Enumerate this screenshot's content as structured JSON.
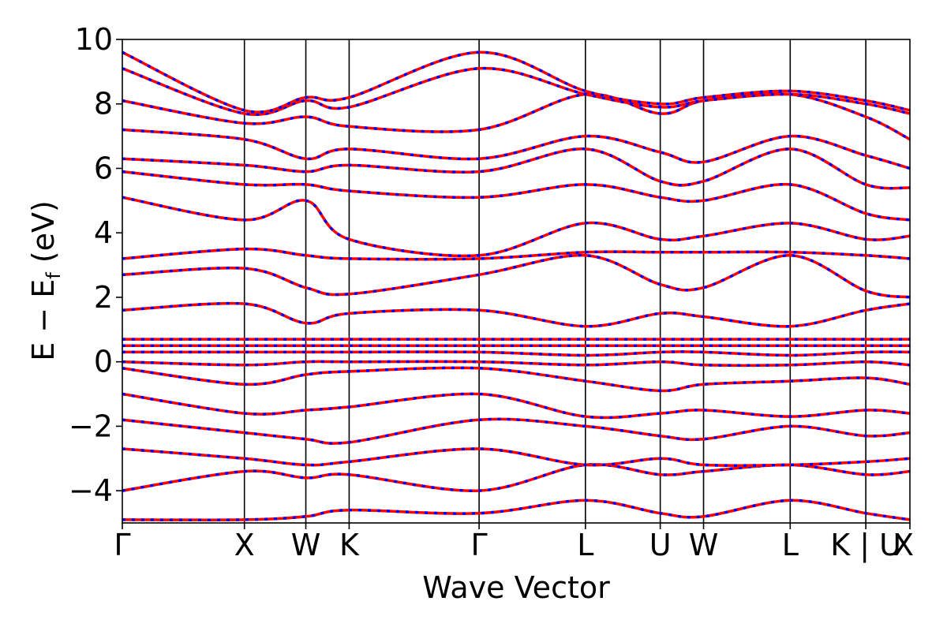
{
  "chart_data": {
    "type": "line",
    "xlabel": "Wave Vector",
    "ylabel_main": "E − E",
    "ylabel_sub": "f",
    "ylabel_unit": " (eV)",
    "ylim": [
      -5,
      10
    ],
    "yticks": [
      -4,
      -2,
      0,
      2,
      4,
      6,
      8,
      10
    ],
    "ytick_labels": [
      "−4",
      "−2",
      "0",
      "2",
      "4",
      "6",
      "8",
      "10"
    ],
    "x_range": [
      0,
      1
    ],
    "kpoints": [
      {
        "label": "Γ",
        "x": 0.0
      },
      {
        "label": "X",
        "x": 0.155
      },
      {
        "label": "W",
        "x": 0.233
      },
      {
        "label": "K",
        "x": 0.288
      },
      {
        "label": "Γ",
        "x": 0.453
      },
      {
        "label": "L",
        "x": 0.588
      },
      {
        "label": "U",
        "x": 0.683
      },
      {
        "label": "W",
        "x": 0.738
      },
      {
        "label": "L",
        "x": 0.848
      },
      {
        "label": "K | U",
        "x": 0.944
      },
      {
        "label": "X",
        "x": 1.0
      }
    ],
    "grid": false,
    "series_colors": {
      "solid": "#ff0000",
      "dashed": "#0000ff"
    },
    "bands": [
      {
        "name": "",
        "x": [
          0,
          0.155,
          0.233,
          0.288,
          0.453,
          0.588,
          0.683,
          0.738,
          0.848,
          0.944,
          1.0
        ],
        "y": [
          -4.9,
          -4.9,
          -4.8,
          -4.6,
          -4.7,
          -4.3,
          -4.7,
          -4.8,
          -4.3,
          -4.7,
          -4.9
        ]
      },
      {
        "name": "",
        "x": [
          0,
          0.155,
          0.233,
          0.288,
          0.453,
          0.588,
          0.683,
          0.738,
          0.848,
          0.944,
          1.0
        ],
        "y": [
          -4.0,
          -3.4,
          -3.6,
          -3.5,
          -4.0,
          -3.2,
          -3.5,
          -3.4,
          -3.2,
          -3.5,
          -3.4
        ]
      },
      {
        "name": "",
        "x": [
          0,
          0.155,
          0.233,
          0.288,
          0.453,
          0.588,
          0.683,
          0.738,
          0.848,
          0.944,
          1.0
        ],
        "y": [
          -2.7,
          -3.0,
          -3.2,
          -3.1,
          -2.7,
          -3.2,
          -3.0,
          -3.2,
          -3.2,
          -3.1,
          -3.0
        ]
      },
      {
        "name": "",
        "x": [
          0,
          0.155,
          0.233,
          0.288,
          0.453,
          0.588,
          0.683,
          0.738,
          0.848,
          0.944,
          1.0
        ],
        "y": [
          -1.8,
          -2.2,
          -2.4,
          -2.5,
          -1.8,
          -2.0,
          -2.3,
          -2.4,
          -2.0,
          -2.3,
          -2.2
        ]
      },
      {
        "name": "",
        "x": [
          0,
          0.155,
          0.233,
          0.288,
          0.453,
          0.588,
          0.683,
          0.738,
          0.848,
          0.944,
          1.0
        ],
        "y": [
          -1.0,
          -1.6,
          -1.5,
          -1.4,
          -1.0,
          -1.7,
          -1.6,
          -1.5,
          -1.7,
          -1.5,
          -1.6
        ]
      },
      {
        "name": "",
        "x": [
          0,
          0.155,
          0.233,
          0.288,
          0.453,
          0.588,
          0.683,
          0.738,
          0.848,
          0.944,
          1.0
        ],
        "y": [
          -0.2,
          -0.7,
          -0.4,
          -0.3,
          -0.2,
          -0.6,
          -0.9,
          -0.7,
          -0.6,
          -0.5,
          -0.7
        ]
      },
      {
        "name": "",
        "x": [
          0,
          0.155,
          0.233,
          0.288,
          0.453,
          0.588,
          0.683,
          0.738,
          0.848,
          0.944,
          1.0
        ],
        "y": [
          0.0,
          -0.1,
          0.0,
          0.0,
          0.0,
          -0.1,
          0.0,
          -0.1,
          -0.1,
          0.0,
          -0.1
        ]
      },
      {
        "name": "",
        "x": [
          0,
          0.155,
          0.233,
          0.288,
          0.453,
          0.588,
          0.683,
          0.738,
          0.848,
          0.944,
          1.0
        ],
        "y": [
          0.3,
          0.3,
          0.3,
          0.3,
          0.3,
          0.2,
          0.3,
          0.3,
          0.2,
          0.3,
          0.3
        ]
      },
      {
        "name": "",
        "x": [
          0,
          0.155,
          0.233,
          0.288,
          0.453,
          0.588,
          0.683,
          0.738,
          0.848,
          0.944,
          1.0
        ],
        "y": [
          0.5,
          0.5,
          0.5,
          0.5,
          0.5,
          0.5,
          0.5,
          0.5,
          0.5,
          0.5,
          0.5
        ]
      },
      {
        "name": "",
        "x": [
          0,
          0.155,
          0.233,
          0.288,
          0.453,
          0.588,
          0.683,
          0.738,
          0.848,
          0.944,
          1.0
        ],
        "y": [
          0.7,
          0.7,
          0.7,
          0.7,
          0.7,
          0.7,
          0.7,
          0.7,
          0.7,
          0.7,
          0.7
        ]
      },
      {
        "name": "",
        "x": [
          0,
          0.155,
          0.233,
          0.288,
          0.453,
          0.588,
          0.683,
          0.738,
          0.848,
          0.944,
          1.0
        ],
        "y": [
          1.6,
          1.8,
          1.2,
          1.5,
          1.6,
          1.1,
          1.5,
          1.4,
          1.1,
          1.6,
          1.8
        ]
      },
      {
        "name": "",
        "x": [
          0,
          0.155,
          0.233,
          0.288,
          0.453,
          0.588,
          0.683,
          0.738,
          0.848,
          0.944,
          1.0
        ],
        "y": [
          2.7,
          2.9,
          2.3,
          2.1,
          2.7,
          3.3,
          2.4,
          2.3,
          3.3,
          2.2,
          2.0
        ]
      },
      {
        "name": "",
        "x": [
          0,
          0.155,
          0.233,
          0.288,
          0.453,
          0.588,
          0.683,
          0.738,
          0.848,
          0.944,
          1.0
        ],
        "y": [
          3.2,
          3.5,
          3.3,
          3.2,
          3.2,
          3.4,
          3.4,
          3.4,
          3.4,
          3.3,
          3.2
        ]
      },
      {
        "name": "",
        "x": [
          0,
          0.155,
          0.233,
          0.288,
          0.453,
          0.588,
          0.683,
          0.738,
          0.848,
          0.944,
          1.0
        ],
        "y": [
          5.1,
          4.4,
          5.0,
          3.8,
          3.3,
          4.3,
          3.8,
          3.9,
          4.3,
          3.8,
          3.9
        ]
      },
      {
        "name": "",
        "x": [
          0,
          0.155,
          0.233,
          0.288,
          0.453,
          0.588,
          0.683,
          0.738,
          0.848,
          0.944,
          1.0
        ],
        "y": [
          5.9,
          5.5,
          5.5,
          5.3,
          5.1,
          5.5,
          5.1,
          5.0,
          5.5,
          4.6,
          4.4
        ]
      },
      {
        "name": "",
        "x": [
          0,
          0.155,
          0.233,
          0.288,
          0.453,
          0.588,
          0.683,
          0.738,
          0.848,
          0.944,
          1.0
        ],
        "y": [
          6.3,
          6.1,
          5.9,
          6.1,
          5.9,
          6.6,
          5.6,
          5.6,
          6.6,
          5.5,
          5.4
        ]
      },
      {
        "name": "",
        "x": [
          0,
          0.155,
          0.233,
          0.288,
          0.453,
          0.588,
          0.683,
          0.738,
          0.848,
          0.944,
          1.0
        ],
        "y": [
          7.2,
          6.9,
          6.3,
          6.6,
          6.3,
          7.0,
          6.5,
          6.2,
          7.0,
          6.4,
          6.0
        ]
      },
      {
        "name": "",
        "x": [
          0,
          0.155,
          0.233,
          0.288,
          0.453,
          0.588,
          0.683,
          0.738,
          0.848,
          0.944,
          1.0
        ],
        "y": [
          8.1,
          7.4,
          7.6,
          7.3,
          7.2,
          8.3,
          7.7,
          8.1,
          8.3,
          7.6,
          6.9
        ]
      },
      {
        "name": "",
        "x": [
          0,
          0.155,
          0.233,
          0.288,
          0.453,
          0.588,
          0.683,
          0.738,
          0.848,
          0.944,
          1.0
        ],
        "y": [
          9.1,
          7.7,
          8.1,
          7.9,
          9.1,
          8.3,
          7.9,
          8.1,
          8.3,
          8.0,
          7.7
        ]
      },
      {
        "name": "",
        "x": [
          0,
          0.155,
          0.233,
          0.288,
          0.453,
          0.588,
          0.683,
          0.738,
          0.848,
          0.944,
          1.0
        ],
        "y": [
          9.6,
          7.8,
          8.2,
          8.2,
          9.6,
          8.4,
          8.0,
          8.2,
          8.4,
          8.1,
          7.8
        ]
      }
    ]
  }
}
